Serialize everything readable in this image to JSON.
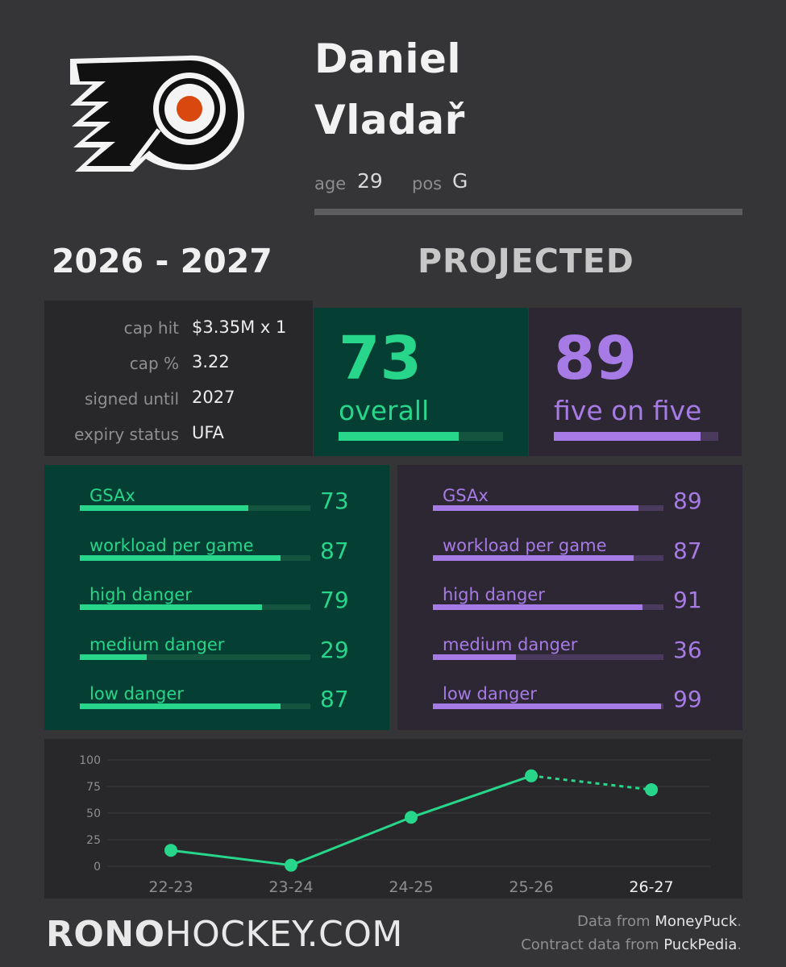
{
  "player": {
    "first_name": "Daniel",
    "last_name": "Vladař",
    "age_label": "age",
    "age": "29",
    "pos_label": "pos",
    "pos": "G"
  },
  "team_logo_icon": "philadelphia-flyers-logo",
  "season": "2026 - 2027",
  "projected_label": "PROJECTED",
  "contract": [
    {
      "label": "cap hit",
      "value": "$3.35M x 1"
    },
    {
      "label": "cap %",
      "value": "3.22"
    },
    {
      "label": "signed until",
      "value": "2027"
    },
    {
      "label": "expiry status",
      "value": "UFA"
    }
  ],
  "overall": {
    "value": "73",
    "label": "overall",
    "pct": 73
  },
  "five_on_five": {
    "value": "89",
    "label": "five on five",
    "pct": 89
  },
  "overall_metrics": [
    {
      "label": "GSAx",
      "value": "73",
      "pct": 73
    },
    {
      "label": "workload per game",
      "value": "87",
      "pct": 87
    },
    {
      "label": "high danger",
      "value": "79",
      "pct": 79
    },
    {
      "label": "medium danger",
      "value": "29",
      "pct": 29
    },
    {
      "label": "low danger",
      "value": "87",
      "pct": 87
    }
  ],
  "five_on_five_metrics": [
    {
      "label": "GSAx",
      "value": "89",
      "pct": 89
    },
    {
      "label": "workload per game",
      "value": "87",
      "pct": 87
    },
    {
      "label": "high danger",
      "value": "91",
      "pct": 91
    },
    {
      "label": "medium danger",
      "value": "36",
      "pct": 36
    },
    {
      "label": "low danger",
      "value": "99",
      "pct": 99
    }
  ],
  "colors": {
    "green": "#27d68a",
    "green_bg": "#053e32",
    "purple": "#a77be6",
    "purple_bg": "#2d2733",
    "logo_orange": "#d9480f"
  },
  "chart_data": {
    "type": "line",
    "categories": [
      "22-23",
      "23-24",
      "24-25",
      "25-26",
      "26-27"
    ],
    "values": [
      15,
      1,
      46,
      85,
      72
    ],
    "projected_from_index": 3,
    "highlight_category": "26-27",
    "yticks": [
      "0",
      "25",
      "50",
      "75",
      "100"
    ],
    "ylim": [
      0,
      100
    ],
    "grid": true
  },
  "footer": {
    "brand_bold": "RONO",
    "brand_rest": "HOCKEY.COM",
    "credit1_prefix": "Data from ",
    "credit1_source": "MoneyPuck",
    "credit2_prefix": "Contract data from ",
    "credit2_source": "PuckPedia",
    "period": "."
  }
}
